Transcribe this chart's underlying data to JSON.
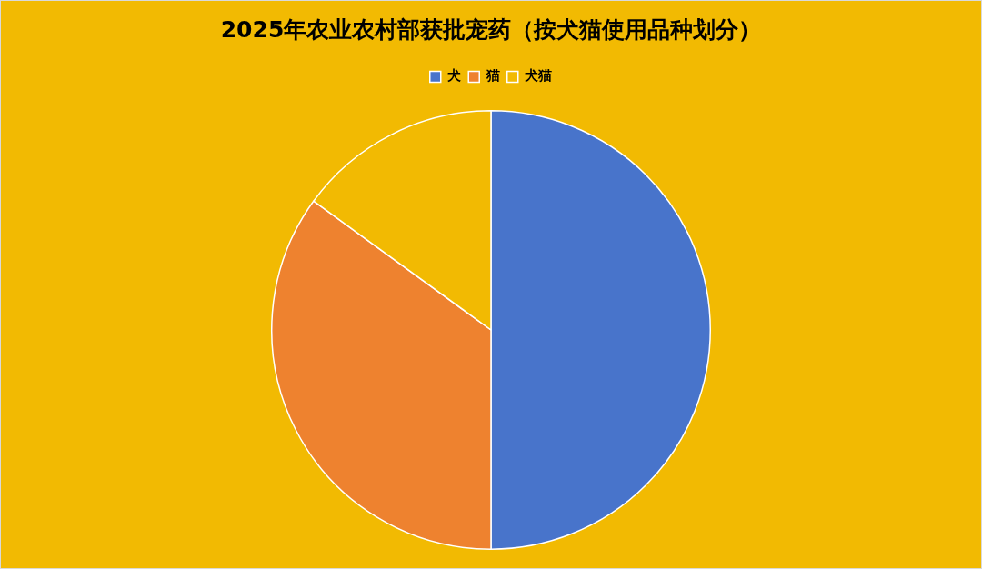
{
  "chart_data": {
    "type": "pie",
    "title": "2025年农业农村部获批宠药（按犬猫使用品种划分）",
    "categories": [
      "犬",
      "猫",
      "犬猫"
    ],
    "values": [
      50,
      35,
      15
    ],
    "colors": [
      "#4874cb",
      "#ee822f",
      "#f2ba02"
    ],
    "legend": "top"
  }
}
